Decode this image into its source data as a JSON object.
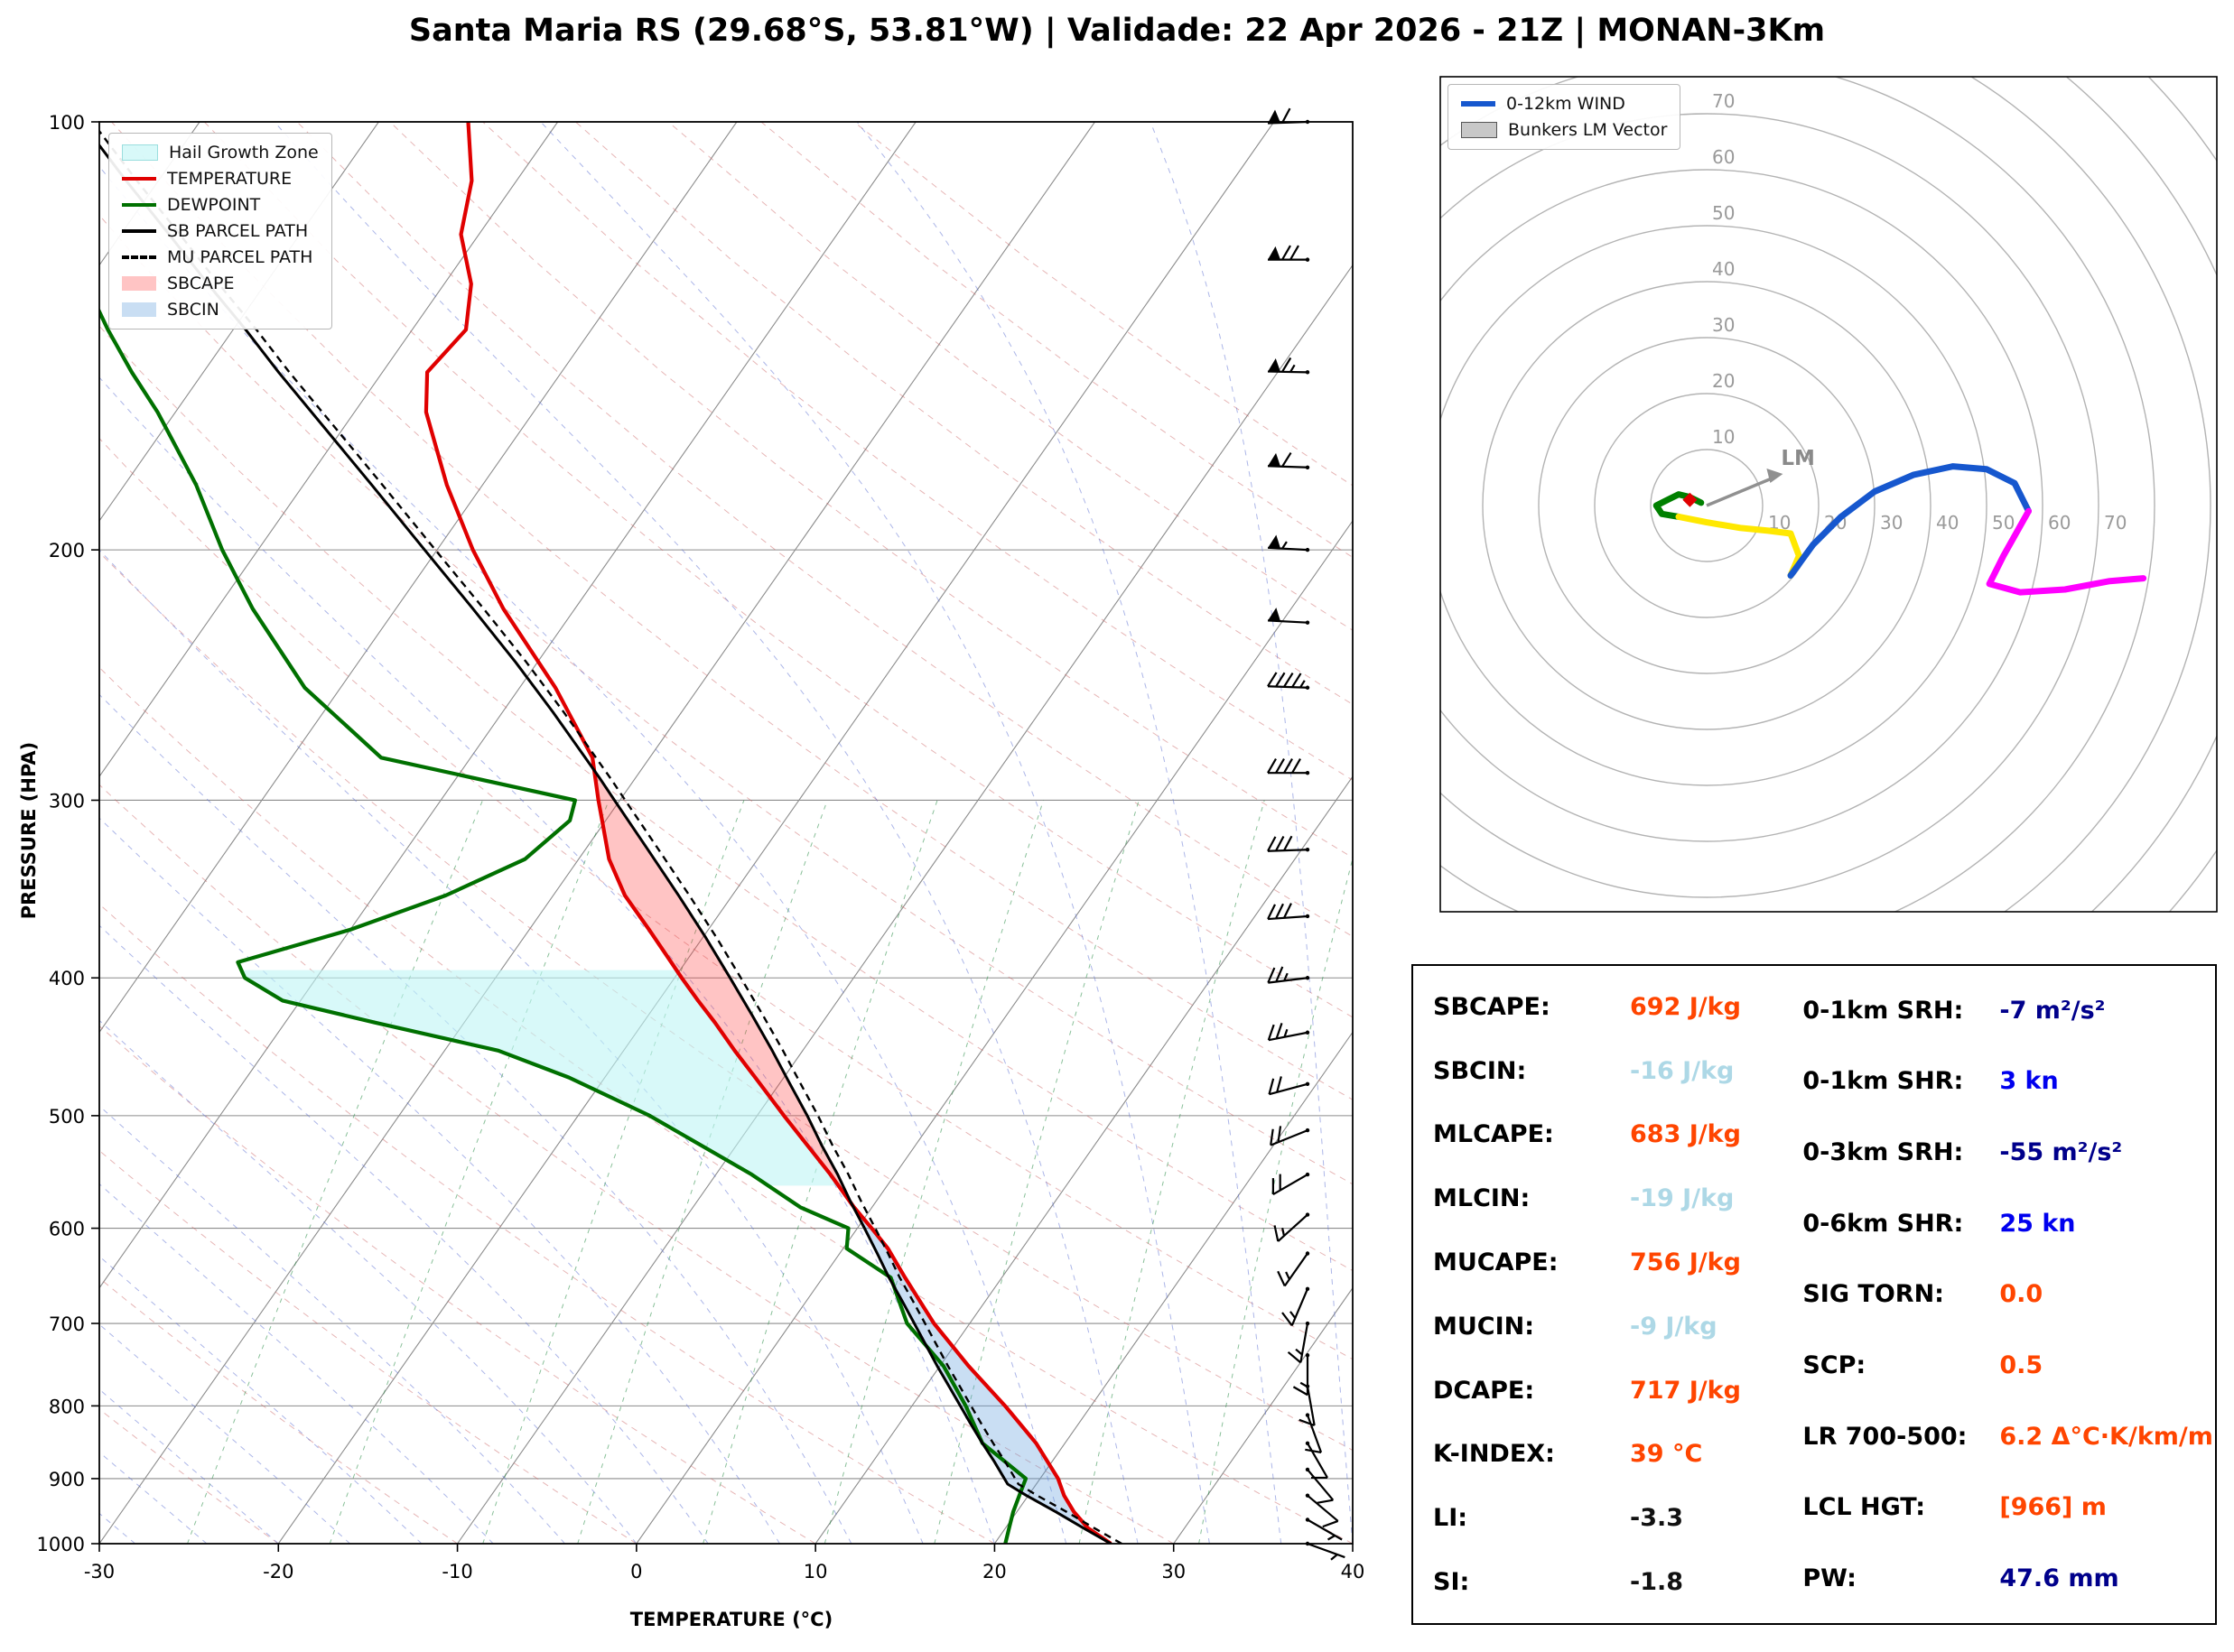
{
  "title": "Santa Maria RS (29.68°S, 53.81°W) | Validade: 22 Apr 2026 - 21Z | MONAN-3Km",
  "palette": {
    "orange": "#FF4500",
    "lightblue": "#ADD8E6",
    "blue": "#0000EE",
    "navy": "#00008B",
    "black": "#111111",
    "temperature_line": "#E00000",
    "dewpoint_line": "#007000",
    "parcel_line": "#000000",
    "cape_fill": "rgba(255,60,60,0.30)",
    "cin_fill": "rgba(100,160,220,0.35)",
    "hail_fill": "rgba(190,245,245,0.60)",
    "hodo_blue": "#1657CE",
    "hodo_green": "#008000",
    "hodo_yellow": "#FFE800",
    "hodo_magenta": "#FF00FF",
    "hodo_gray": "#909090"
  },
  "chart_data": [
    {
      "type": "line",
      "name": "skewt_sounding",
      "xlabel": "TEMPERATURE (°C)",
      "ylabel": "PRESSURE (HPA)",
      "xlim": [
        -30,
        40
      ],
      "plim": [
        100,
        1000
      ],
      "x_ticks": [
        -30,
        -20,
        -10,
        0,
        10,
        20,
        30,
        40
      ],
      "pressure_ticks": [
        100,
        200,
        300,
        400,
        500,
        600,
        700,
        800,
        900,
        1000
      ],
      "legend": [
        "Hail Growth Zone",
        "TEMPERATURE",
        "DEWPOINT",
        "SB PARCEL PATH",
        "MU PARCEL PATH",
        "SBCAPE",
        "SBCIN"
      ],
      "pressure": [
        1000,
        975,
        950,
        925,
        900,
        850,
        800,
        750,
        700,
        650,
        620,
        600,
        580,
        550,
        500,
        470,
        450,
        430,
        415,
        400,
        390,
        370,
        350,
        330,
        310,
        300,
        280,
        250,
        220,
        200,
        180,
        160,
        150,
        140,
        130,
        120,
        110,
        100
      ],
      "temperature": [
        26.5,
        24.6,
        23.2,
        22.0,
        21.0,
        18.4,
        15.2,
        11.6,
        8.0,
        4.6,
        2.5,
        0.8,
        -1.0,
        -3.6,
        -8.5,
        -11.6,
        -13.8,
        -16.0,
        -17.8,
        -19.6,
        -20.8,
        -23.3,
        -26.0,
        -28.3,
        -30.2,
        -31.2,
        -33.2,
        -38.0,
        -44.0,
        -48.0,
        -52.0,
        -56.0,
        -57.5,
        -57.0,
        -58.5,
        -61.0,
        -62.5,
        -65.0
      ],
      "dewpoint": [
        20.6,
        20.2,
        19.8,
        19.5,
        19.2,
        15.4,
        13.0,
        10.2,
        6.5,
        3.8,
        0.2,
        -0.5,
        -4.0,
        -8.0,
        -16.0,
        -22.0,
        -27.0,
        -35.0,
        -41.0,
        -44.0,
        -45.0,
        -40.0,
        -36.0,
        -33.0,
        -32.0,
        -32.5,
        -45.0,
        -52.0,
        -58.0,
        -62.0,
        -66.0,
        -71.0,
        -74.0,
        -77.0,
        -80.0,
        -84.0,
        -88.0,
        -92.0
      ],
      "parcel_pressure": [
        1000,
        975,
        950,
        925,
        908,
        875,
        850,
        825,
        800,
        775,
        750,
        725,
        700,
        675,
        650,
        625,
        600,
        575,
        550,
        525,
        500,
        475,
        450,
        425,
        400,
        375,
        350,
        325,
        300,
        290,
        280,
        260,
        240,
        220,
        200,
        180,
        160,
        150,
        140,
        130,
        120,
        110,
        100
      ],
      "parcel_temperature": [
        26.5,
        24.35,
        22.2,
        19.9,
        18.4,
        16.75,
        15.4,
        14.05,
        12.7,
        11.3,
        9.85,
        8.4,
        6.9,
        5.35,
        3.7,
        2.1,
        0.4,
        -1.4,
        -3.2,
        -5.2,
        -7.2,
        -9.4,
        -11.7,
        -14.2,
        -16.9,
        -19.8,
        -23.0,
        -26.5,
        -30.3,
        -31.9,
        -33.6,
        -37.2,
        -41.2,
        -45.7,
        -50.7,
        -56.2,
        -62.4,
        -65.8,
        -69.3,
        -73.2,
        -77.3,
        -81.8,
        -86.6
      ],
      "mu_parcel_offset_c": 0.6,
      "parcel_levels": {
        "lcl_hpa": 908,
        "lfc_hpa": 590,
        "el_hpa": 285
      },
      "hail_zone_plim": [
        560,
        395
      ],
      "wind_barbs": {
        "pressure": [
          1000,
          962,
          925,
          887,
          850,
          812,
          775,
          737,
          700,
          662,
          625,
          587,
          550,
          512,
          475,
          437,
          400,
          362,
          325,
          287,
          250,
          225,
          200,
          175,
          150,
          125,
          100
        ],
        "speed_kn": [
          4,
          6,
          8,
          9,
          10,
          11,
          12,
          13,
          15,
          15,
          16,
          17,
          18,
          20,
          22,
          24,
          26,
          29,
          32,
          38,
          45,
          50,
          55,
          60,
          65,
          70,
          62
        ],
        "direction_deg": [
          110,
          120,
          130,
          140,
          150,
          160,
          170,
          180,
          190,
          203,
          215,
          228,
          240,
          248,
          255,
          259,
          263,
          266,
          268,
          270,
          272,
          273,
          273,
          272,
          271,
          270,
          268
        ]
      }
    },
    {
      "type": "line",
      "name": "hodograph",
      "legend": [
        "0-12km WIND",
        "Bunkers LM Vector"
      ],
      "ring_interval_kn": 10,
      "ring_labels": [
        10,
        20,
        30,
        40,
        50,
        60,
        70
      ],
      "segments": [
        {
          "color": "hodo_green",
          "points": [
            [
              -1,
              0.5
            ],
            [
              -3,
              1.5
            ],
            [
              -5,
              2
            ],
            [
              -7,
              1
            ],
            [
              -9,
              0
            ],
            [
              -8,
              -1.5
            ],
            [
              -5,
              -2
            ]
          ]
        },
        {
          "color": "hodo_yellow",
          "points": [
            [
              -5,
              -2
            ],
            [
              0,
              -3
            ],
            [
              6,
              -4
            ],
            [
              11,
              -4.5
            ],
            [
              15,
              -5
            ],
            [
              16.5,
              -9
            ],
            [
              15,
              -12.5
            ]
          ]
        },
        {
          "color": "hodo_blue",
          "points": [
            [
              15,
              -12.5
            ],
            [
              19,
              -7
            ],
            [
              24,
              -2
            ],
            [
              30,
              2.5
            ],
            [
              37,
              5.5
            ],
            [
              44,
              7
            ],
            [
              50,
              6.5
            ],
            [
              55,
              4
            ],
            [
              57.5,
              -1
            ]
          ]
        },
        {
          "color": "hodo_magenta",
          "points": [
            [
              57.5,
              -1
            ],
            [
              53,
              -9
            ],
            [
              50.5,
              -14
            ],
            [
              56,
              -15.5
            ],
            [
              64,
              -15
            ],
            [
              72,
              -13.5
            ],
            [
              78,
              -13
            ]
          ]
        }
      ],
      "lm_vector_kn": [
        12,
        5
      ],
      "lm_label": "LM",
      "rm_marker_kn": [
        -3,
        1
      ]
    },
    {
      "type": "table",
      "name": "severe_indices",
      "left_rows": [
        {
          "label": "SBCAPE:",
          "value": "692 J/kg",
          "color": "orange"
        },
        {
          "label": "SBCIN:",
          "value": "-16 J/kg",
          "color": "lightblue"
        },
        {
          "label": "MLCAPE:",
          "value": "683 J/kg",
          "color": "orange"
        },
        {
          "label": "MLCIN:",
          "value": "-19 J/kg",
          "color": "lightblue"
        },
        {
          "label": "MUCAPE:",
          "value": "756 J/kg",
          "color": "orange"
        },
        {
          "label": "MUCIN:",
          "value": "-9 J/kg",
          "color": "lightblue"
        },
        {
          "label": "DCAPE:",
          "value": "717 J/kg",
          "color": "orange"
        },
        {
          "label": "K-INDEX:",
          "value": "39 °C",
          "color": "orange"
        },
        {
          "label": "LI:",
          "value": "-3.3",
          "color": "black"
        },
        {
          "label": "SI:",
          "value": "-1.8",
          "color": "black"
        }
      ],
      "right_rows": [
        {
          "label": "0-1km SRH:",
          "value": "-7 m²/s²",
          "color": "navy"
        },
        {
          "label": "0-1km SHR:",
          "value": "3 kn",
          "color": "blue"
        },
        {
          "label": "0-3km SRH:",
          "value": "-55 m²/s²",
          "color": "navy"
        },
        {
          "label": "0-6km SHR:",
          "value": "25 kn",
          "color": "blue"
        },
        {
          "label": "SIG TORN:",
          "value": "0.0",
          "color": "orange"
        },
        {
          "label": "SCP:",
          "value": "0.5",
          "color": "orange"
        },
        {
          "label": "LR 700-500:",
          "value": "6.2 Δ°C·K/km/m",
          "color": "orange"
        },
        {
          "label": "LCL HGT:",
          "value": "[966] m",
          "color": "orange"
        },
        {
          "label": "PW:",
          "value": "47.6 mm",
          "color": "navy"
        }
      ]
    }
  ]
}
